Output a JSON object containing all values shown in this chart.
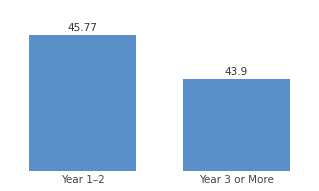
{
  "categories": [
    "Year 1–2",
    "Year 3 or More"
  ],
  "values": [
    45.77,
    43.9
  ],
  "bar_color": "#5b8fc9",
  "bar_width": 0.35,
  "ylim": [
    40,
    47
  ],
  "label_fontsize": 7.5,
  "tick_fontsize": 7.5,
  "value_fontsize": 7.5,
  "background_color": "#ffffff",
  "bar_positions": [
    0.25,
    0.75
  ]
}
